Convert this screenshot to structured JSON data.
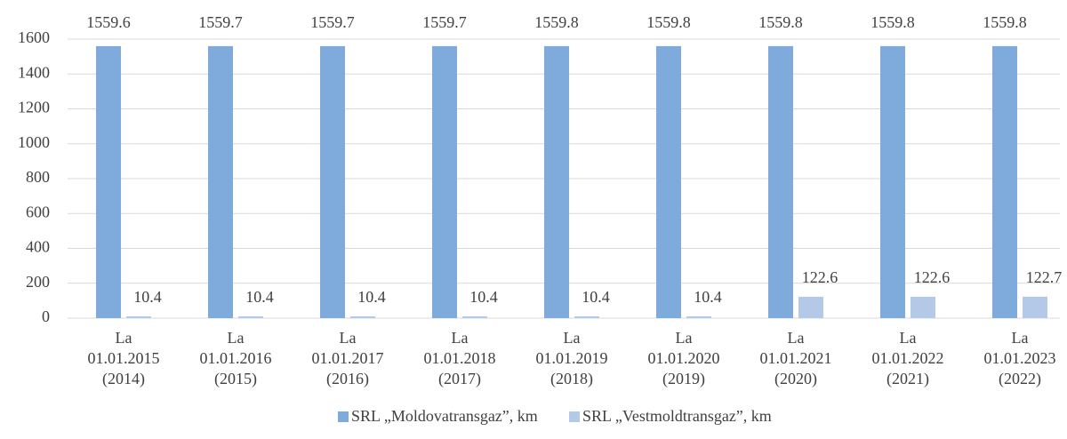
{
  "chart_data": {
    "type": "bar",
    "categories": [
      [
        "La",
        "01.01.2015",
        "(2014)"
      ],
      [
        "La",
        "01.01.2016",
        "(2015)"
      ],
      [
        "La",
        "01.01.2017",
        "(2016)"
      ],
      [
        "La",
        "01.01.2018",
        "(2017)"
      ],
      [
        "La",
        "01.01.2019",
        "(2018)"
      ],
      [
        "La",
        "01.01.2020",
        "(2019)"
      ],
      [
        "La",
        "01.01.2021",
        "(2020)"
      ],
      [
        "La",
        "01.01.2022",
        "(2021)"
      ],
      [
        "La",
        "01.01.2023",
        "(2022)"
      ]
    ],
    "series": [
      {
        "name": "SRL „Moldovatransgaz”, km",
        "color": "#7eaadc",
        "values": [
          1559.6,
          1559.7,
          1559.7,
          1559.7,
          1559.8,
          1559.8,
          1559.8,
          1559.8,
          1559.8
        ]
      },
      {
        "name": "SRL „Vestmoldtransgaz”, km",
        "color": "#b4c8e8",
        "values": [
          10.4,
          10.4,
          10.4,
          10.4,
          10.4,
          10.4,
          122.6,
          122.6,
          122.7
        ]
      }
    ],
    "ylim": [
      0,
      1600
    ],
    "yticks": [
      0,
      200,
      400,
      600,
      800,
      1000,
      1200,
      1400,
      1600
    ],
    "grid": true,
    "legend": "bottom"
  }
}
